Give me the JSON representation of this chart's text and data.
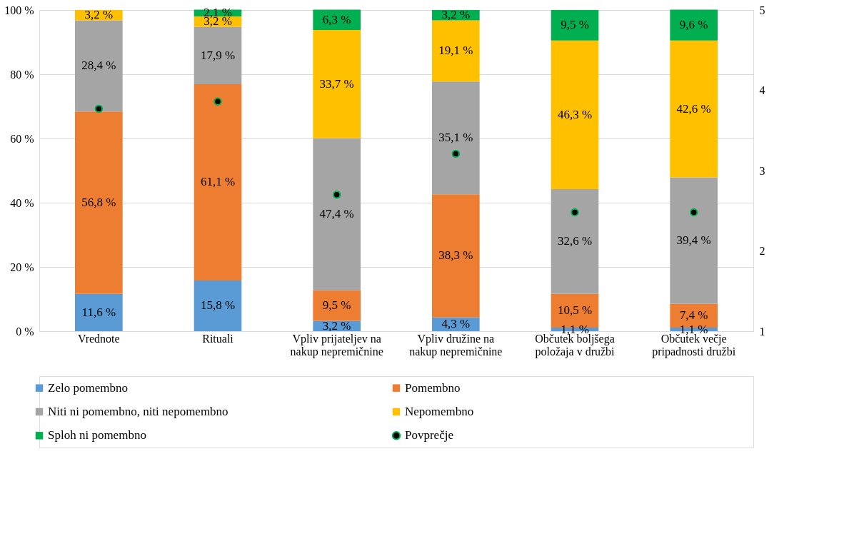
{
  "chart_data": {
    "type": "bar",
    "stacked": true,
    "categories": [
      "Vrednote",
      "Rituali",
      "Vpliv prijateljev na nakup nepremičnine",
      "Vpliv družine na nakup nepremičnine",
      "Občutek boljšega položaja v družbi",
      "Občutek večje pripadnosti družbi"
    ],
    "series": [
      {
        "name": "Zelo pomembno",
        "color": "#5b9bd5",
        "values": [
          11.6,
          15.8,
          3.2,
          4.3,
          1.1,
          1.1
        ],
        "value_labels": [
          "11,6 %",
          "15,8 %",
          "3,2 %",
          "4,3 %",
          "1,1 %",
          "1,1 %"
        ]
      },
      {
        "name": "Pomembno",
        "color": "#ed7d31",
        "values": [
          56.8,
          61.1,
          9.5,
          38.3,
          10.5,
          7.4
        ],
        "value_labels": [
          "56,8 %",
          "61,1 %",
          "9,5 %",
          "38,3 %",
          "10,5 %",
          "7,4 %"
        ]
      },
      {
        "name": "Niti ni pomembno, niti nepomembno",
        "color": "#a5a5a5",
        "values": [
          28.4,
          17.9,
          47.4,
          35.1,
          32.6,
          39.4
        ],
        "value_labels": [
          "28,4 %",
          "17,9 %",
          "47,4 %",
          "35,1 %",
          "32,6 %",
          "39,4 %"
        ]
      },
      {
        "name": "Nepomembno",
        "color": "#ffc000",
        "values": [
          3.2,
          3.2,
          33.7,
          19.1,
          46.3,
          42.6
        ],
        "value_labels": [
          "3,2 %",
          "3,2 %",
          "33,7 %",
          "19,1 %",
          "46,3 %",
          "42,6 %"
        ]
      },
      {
        "name": "Sploh ni pomembno",
        "color": "#00b050",
        "values": [
          null,
          2.1,
          6.3,
          3.2,
          9.5,
          9.6
        ],
        "value_labels": [
          null,
          "2,1 %",
          "6,3 %",
          "3,2 %",
          "9,5 %",
          "9,6 %"
        ]
      },
      {
        "name": "Povprečje",
        "type": "scatter",
        "axis": "y2",
        "marker": "circle",
        "color": "#000000",
        "values": [
          3.77,
          3.86,
          2.7,
          3.21,
          2.48,
          2.48
        ]
      }
    ],
    "ylim": [
      0,
      100
    ],
    "yticks": [
      {
        "value": 0,
        "label": "0 %"
      },
      {
        "value": 20,
        "label": "20 %"
      },
      {
        "value": 40,
        "label": "40 %"
      },
      {
        "value": 60,
        "label": "60 %"
      },
      {
        "value": 80,
        "label": "80 %"
      },
      {
        "value": 100,
        "label": "100 %"
      }
    ],
    "y2lim": [
      1,
      5
    ],
    "y2ticks": [
      1,
      2,
      3,
      4,
      5
    ],
    "grid": "y",
    "legend": "bottom"
  }
}
